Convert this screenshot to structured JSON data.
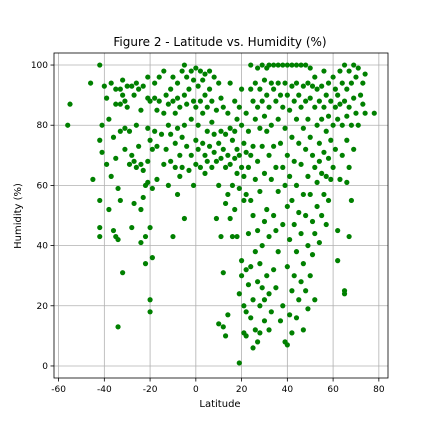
{
  "chart_data": {
    "type": "scatter",
    "title": "Figure 2 - Latitude vs. Humidity (%)",
    "xlabel": "Latitude",
    "ylabel": "Humidity (%)",
    "xlim": [
      -62,
      84
    ],
    "ylim": [
      -4,
      104
    ],
    "xticks": [
      -60,
      -40,
      -20,
      0,
      20,
      40,
      60,
      80
    ],
    "yticks": [
      0,
      20,
      40,
      60,
      80,
      100
    ],
    "grid": true,
    "marker_color": "#008000",
    "points": [
      [
        -56,
        80
      ],
      [
        -55,
        87
      ],
      [
        -46,
        94
      ],
      [
        -45,
        62
      ],
      [
        -42,
        100
      ],
      [
        -42,
        75
      ],
      [
        -42,
        55
      ],
      [
        -42,
        46
      ],
      [
        -42,
        43
      ],
      [
        -41,
        80
      ],
      [
        -41,
        71
      ],
      [
        -40,
        93
      ],
      [
        -39,
        89
      ],
      [
        -39,
        67
      ],
      [
        -38,
        52
      ],
      [
        -38,
        82
      ],
      [
        -37,
        94
      ],
      [
        -37,
        63
      ],
      [
        -36,
        76
      ],
      [
        -36,
        45
      ],
      [
        -35,
        92
      ],
      [
        -35,
        87
      ],
      [
        -35,
        69
      ],
      [
        -35,
        43
      ],
      [
        -34,
        59
      ],
      [
        -34,
        13
      ],
      [
        -34,
        42
      ],
      [
        -33,
        92
      ],
      [
        -33,
        87
      ],
      [
        -33,
        55
      ],
      [
        -33,
        78
      ],
      [
        -32,
        95
      ],
      [
        -32,
        90
      ],
      [
        -32,
        31
      ],
      [
        -31,
        88
      ],
      [
        -31,
        79
      ],
      [
        -31,
        72
      ],
      [
        -30,
        93
      ],
      [
        -30,
        86
      ],
      [
        -29,
        78
      ],
      [
        -29,
        67
      ],
      [
        -28,
        93
      ],
      [
        -28,
        70
      ],
      [
        -28,
        46
      ],
      [
        -27,
        90
      ],
      [
        -27,
        68
      ],
      [
        -27,
        54
      ],
      [
        -26,
        94
      ],
      [
        -26,
        80
      ],
      [
        -26,
        66
      ],
      [
        -25,
        92
      ],
      [
        -25,
        73
      ],
      [
        -24,
        85
      ],
      [
        -24,
        67
      ],
      [
        -24,
        52
      ],
      [
        -24,
        41
      ],
      [
        -23,
        93
      ],
      [
        -23,
        65
      ],
      [
        -23,
        56
      ],
      [
        -22,
        60
      ],
      [
        -22,
        43
      ],
      [
        -22,
        34
      ],
      [
        -21,
        96
      ],
      [
        -21,
        89
      ],
      [
        -21,
        79
      ],
      [
        -21,
        68
      ],
      [
        -21,
        61
      ],
      [
        -20,
        88
      ],
      [
        -20,
        75
      ],
      [
        -20,
        46
      ],
      [
        -20,
        22
      ],
      [
        -20,
        18
      ],
      [
        -19,
        59
      ],
      [
        -19,
        72
      ],
      [
        -19,
        36
      ],
      [
        -18,
        89
      ],
      [
        -18,
        94
      ],
      [
        -18,
        78
      ],
      [
        -17,
        85
      ],
      [
        -17,
        73
      ],
      [
        -17,
        62
      ],
      [
        -16,
        88
      ],
      [
        -16,
        96
      ],
      [
        -15,
        77
      ],
      [
        -14,
        84
      ],
      [
        -14,
        98
      ],
      [
        -14,
        67
      ],
      [
        -13,
        90
      ],
      [
        -13,
        72
      ],
      [
        -12,
        87
      ],
      [
        -12,
        80
      ],
      [
        -12,
        60
      ],
      [
        -11,
        92
      ],
      [
        -11,
        77
      ],
      [
        -11,
        68
      ],
      [
        -10,
        88
      ],
      [
        -10,
        96
      ],
      [
        -10,
        43
      ],
      [
        -9,
        84
      ],
      [
        -9,
        74
      ],
      [
        -9,
        66
      ],
      [
        -8,
        89
      ],
      [
        -8,
        94
      ],
      [
        -8,
        79
      ],
      [
        -8,
        57
      ],
      [
        -7,
        86
      ],
      [
        -7,
        70
      ],
      [
        -7,
        63
      ],
      [
        -6,
        98
      ],
      [
        -6,
        76
      ],
      [
        -6,
        66
      ],
      [
        -5,
        100
      ],
      [
        -5,
        90
      ],
      [
        -5,
        80
      ],
      [
        -5,
        49
      ],
      [
        -4,
        96
      ],
      [
        -4,
        87
      ],
      [
        -4,
        73
      ],
      [
        -3,
        92
      ],
      [
        -3,
        65
      ],
      [
        -2,
        98
      ],
      [
        -2,
        82
      ],
      [
        -2,
        70
      ],
      [
        -1,
        88
      ],
      [
        -1,
        95
      ],
      [
        -1,
        60
      ],
      [
        0,
        99
      ],
      [
        0,
        86
      ],
      [
        0,
        75
      ],
      [
        0,
        67
      ],
      [
        1,
        93
      ],
      [
        1,
        80
      ],
      [
        1,
        72
      ],
      [
        2,
        98
      ],
      [
        2,
        88
      ],
      [
        2,
        66
      ],
      [
        3,
        95
      ],
      [
        3,
        74
      ],
      [
        3,
        84
      ],
      [
        4,
        97
      ],
      [
        4,
        90
      ],
      [
        4,
        70
      ],
      [
        4,
        64
      ],
      [
        5,
        86
      ],
      [
        5,
        78
      ],
      [
        5,
        68
      ],
      [
        6,
        98
      ],
      [
        6,
        92
      ],
      [
        6,
        73
      ],
      [
        7,
        88
      ],
      [
        7,
        81
      ],
      [
        7,
        66
      ],
      [
        8,
        96
      ],
      [
        8,
        77
      ],
      [
        8,
        71
      ],
      [
        9,
        85
      ],
      [
        9,
        68
      ],
      [
        9,
        49
      ],
      [
        10,
        94
      ],
      [
        10,
        74
      ],
      [
        10,
        60
      ],
      [
        10,
        14
      ],
      [
        11,
        89
      ],
      [
        11,
        78
      ],
      [
        11,
        69
      ],
      [
        11,
        43
      ],
      [
        12,
        86
      ],
      [
        12,
        72
      ],
      [
        12,
        31
      ],
      [
        12,
        13
      ],
      [
        13,
        77
      ],
      [
        13,
        66
      ],
      [
        13,
        54
      ],
      [
        13,
        10
      ],
      [
        14,
        84
      ],
      [
        14,
        70
      ],
      [
        14,
        57
      ],
      [
        14,
        17
      ],
      [
        15,
        94
      ],
      [
        15,
        79
      ],
      [
        15,
        67
      ],
      [
        15,
        49
      ],
      [
        16,
        75
      ],
      [
        16,
        60
      ],
      [
        16,
        43
      ],
      [
        17,
        88
      ],
      [
        17,
        78
      ],
      [
        17,
        69
      ],
      [
        17,
        52
      ],
      [
        18,
        82
      ],
      [
        18,
        72
      ],
      [
        18,
        64
      ],
      [
        18,
        43
      ],
      [
        19,
        86
      ],
      [
        19,
        70
      ],
      [
        19,
        59
      ],
      [
        19,
        24
      ],
      [
        19,
        1
      ],
      [
        20,
        92
      ],
      [
        20,
        80
      ],
      [
        20,
        66
      ],
      [
        20,
        35
      ],
      [
        20,
        30
      ],
      [
        21,
        74
      ],
      [
        21,
        63
      ],
      [
        21,
        55
      ],
      [
        21,
        20
      ],
      [
        21,
        11
      ],
      [
        22,
        84
      ],
      [
        22,
        71
      ],
      [
        22,
        57
      ],
      [
        22,
        32
      ],
      [
        22,
        18
      ],
      [
        22,
        10
      ],
      [
        23,
        78
      ],
      [
        23,
        66
      ],
      [
        23,
        44
      ],
      [
        23,
        27
      ],
      [
        24,
        100
      ],
      [
        24,
        92
      ],
      [
        24,
        70
      ],
      [
        24,
        55
      ],
      [
        24,
        33
      ],
      [
        24,
        16
      ],
      [
        25,
        88
      ],
      [
        25,
        73
      ],
      [
        25,
        50
      ],
      [
        25,
        22
      ],
      [
        25,
        6
      ],
      [
        26,
        94
      ],
      [
        26,
        82
      ],
      [
        26,
        62
      ],
      [
        26,
        38
      ],
      [
        26,
        12
      ],
      [
        27,
        99
      ],
      [
        27,
        86
      ],
      [
        27,
        68
      ],
      [
        27,
        45
      ],
      [
        27,
        28
      ],
      [
        27,
        8
      ],
      [
        28,
        92
      ],
      [
        28,
        79
      ],
      [
        28,
        58
      ],
      [
        28,
        34
      ],
      [
        28,
        20
      ],
      [
        28,
        11
      ],
      [
        29,
        100
      ],
      [
        29,
        88
      ],
      [
        29,
        73
      ],
      [
        29,
        40
      ],
      [
        29,
        26
      ],
      [
        30,
        95
      ],
      [
        30,
        83
      ],
      [
        30,
        64
      ],
      [
        30,
        48
      ],
      [
        30,
        22
      ],
      [
        30,
        15
      ],
      [
        31,
        99
      ],
      [
        31,
        90
      ],
      [
        31,
        78
      ],
      [
        31,
        52
      ],
      [
        31,
        30
      ],
      [
        32,
        100
      ],
      [
        32,
        86
      ],
      [
        32,
        70
      ],
      [
        32,
        43
      ],
      [
        32,
        24
      ],
      [
        32,
        12
      ],
      [
        33,
        94
      ],
      [
        33,
        80
      ],
      [
        33,
        62
      ],
      [
        33,
        18
      ],
      [
        34,
        100
      ],
      [
        34,
        92
      ],
      [
        34,
        73
      ],
      [
        34,
        50
      ],
      [
        34,
        32
      ],
      [
        35,
        88
      ],
      [
        35,
        66
      ],
      [
        35,
        45
      ],
      [
        35,
        26
      ],
      [
        36,
        100
      ],
      [
        36,
        94
      ],
      [
        36,
        82
      ],
      [
        36,
        58
      ],
      [
        36,
        38
      ],
      [
        37,
        90
      ],
      [
        37,
        74
      ],
      [
        37,
        15
      ],
      [
        38,
        100
      ],
      [
        38,
        86
      ],
      [
        38,
        66
      ],
      [
        38,
        47
      ],
      [
        38,
        20
      ],
      [
        39,
        94
      ],
      [
        39,
        79
      ],
      [
        39,
        60
      ],
      [
        39,
        8
      ],
      [
        40,
        100
      ],
      [
        40,
        90
      ],
      [
        40,
        70
      ],
      [
        40,
        53
      ],
      [
        40,
        33
      ],
      [
        40,
        7
      ],
      [
        41,
        85
      ],
      [
        41,
        63
      ],
      [
        41,
        42
      ],
      [
        41,
        17
      ],
      [
        42,
        100
      ],
      [
        42,
        93
      ],
      [
        42,
        76
      ],
      [
        42,
        55
      ],
      [
        42,
        25
      ],
      [
        42,
        11
      ],
      [
        43,
        88
      ],
      [
        43,
        68
      ],
      [
        43,
        47
      ],
      [
        43,
        30
      ],
      [
        44,
        100
      ],
      [
        44,
        94
      ],
      [
        44,
        82
      ],
      [
        44,
        60
      ],
      [
        44,
        38
      ],
      [
        44,
        16
      ],
      [
        45,
        90
      ],
      [
        45,
        74
      ],
      [
        45,
        51
      ],
      [
        45,
        22
      ],
      [
        46,
        100
      ],
      [
        46,
        86
      ],
      [
        46,
        67
      ],
      [
        46,
        44
      ],
      [
        46,
        28
      ],
      [
        47,
        93
      ],
      [
        47,
        79
      ],
      [
        47,
        57
      ],
      [
        47,
        34
      ],
      [
        47,
        12
      ],
      [
        48,
        100
      ],
      [
        48,
        88
      ],
      [
        48,
        72
      ],
      [
        48,
        50
      ],
      [
        48,
        25
      ],
      [
        49,
        94
      ],
      [
        49,
        82
      ],
      [
        49,
        63
      ],
      [
        49,
        40
      ],
      [
        49,
        19
      ],
      [
        50,
        99
      ],
      [
        50,
        89
      ],
      [
        50,
        76
      ],
      [
        50,
        57
      ],
      [
        50,
        30
      ],
      [
        51,
        93
      ],
      [
        51,
        70
      ],
      [
        51,
        48
      ],
      [
        51,
        37
      ],
      [
        52,
        96
      ],
      [
        52,
        86
      ],
      [
        52,
        66
      ],
      [
        52,
        44
      ],
      [
        52,
        22
      ],
      [
        53,
        92
      ],
      [
        53,
        80
      ],
      [
        53,
        61
      ],
      [
        53,
        53
      ],
      [
        54,
        88
      ],
      [
        54,
        74
      ],
      [
        54,
        68
      ],
      [
        54,
        41
      ],
      [
        55,
        93
      ],
      [
        55,
        82
      ],
      [
        55,
        64
      ],
      [
        55,
        50
      ],
      [
        56,
        98
      ],
      [
        56,
        86
      ],
      [
        56,
        71
      ],
      [
        56,
        57
      ],
      [
        57,
        90
      ],
      [
        57,
        78
      ],
      [
        57,
        63
      ],
      [
        57,
        47
      ],
      [
        58,
        94
      ],
      [
        58,
        83
      ],
      [
        58,
        69
      ],
      [
        58,
        55
      ],
      [
        59,
        88
      ],
      [
        59,
        75
      ],
      [
        59,
        62
      ],
      [
        60,
        96
      ],
      [
        60,
        80
      ],
      [
        60,
        66
      ],
      [
        61,
        92
      ],
      [
        61,
        86
      ],
      [
        61,
        72
      ],
      [
        62,
        90
      ],
      [
        62,
        82
      ],
      [
        62,
        45
      ],
      [
        62,
        35
      ],
      [
        63,
        98
      ],
      [
        63,
        87
      ],
      [
        63,
        62
      ],
      [
        64,
        94
      ],
      [
        64,
        80
      ],
      [
        64,
        70
      ],
      [
        65,
        100
      ],
      [
        65,
        88
      ],
      [
        65,
        25
      ],
      [
        65,
        24
      ],
      [
        66,
        92
      ],
      [
        66,
        83
      ],
      [
        66,
        75
      ],
      [
        66,
        61
      ],
      [
        67,
        98
      ],
      [
        67,
        86
      ],
      [
        67,
        66
      ],
      [
        67,
        43
      ],
      [
        68,
        94
      ],
      [
        68,
        80
      ],
      [
        68,
        55
      ],
      [
        69,
        100
      ],
      [
        69,
        89
      ],
      [
        69,
        72
      ],
      [
        70,
        96
      ],
      [
        70,
        84
      ],
      [
        71,
        99
      ],
      [
        71,
        80
      ],
      [
        72,
        90
      ],
      [
        73,
        94
      ],
      [
        73,
        87
      ],
      [
        74,
        97
      ],
      [
        74,
        84
      ],
      [
        78,
        84
      ]
    ]
  }
}
